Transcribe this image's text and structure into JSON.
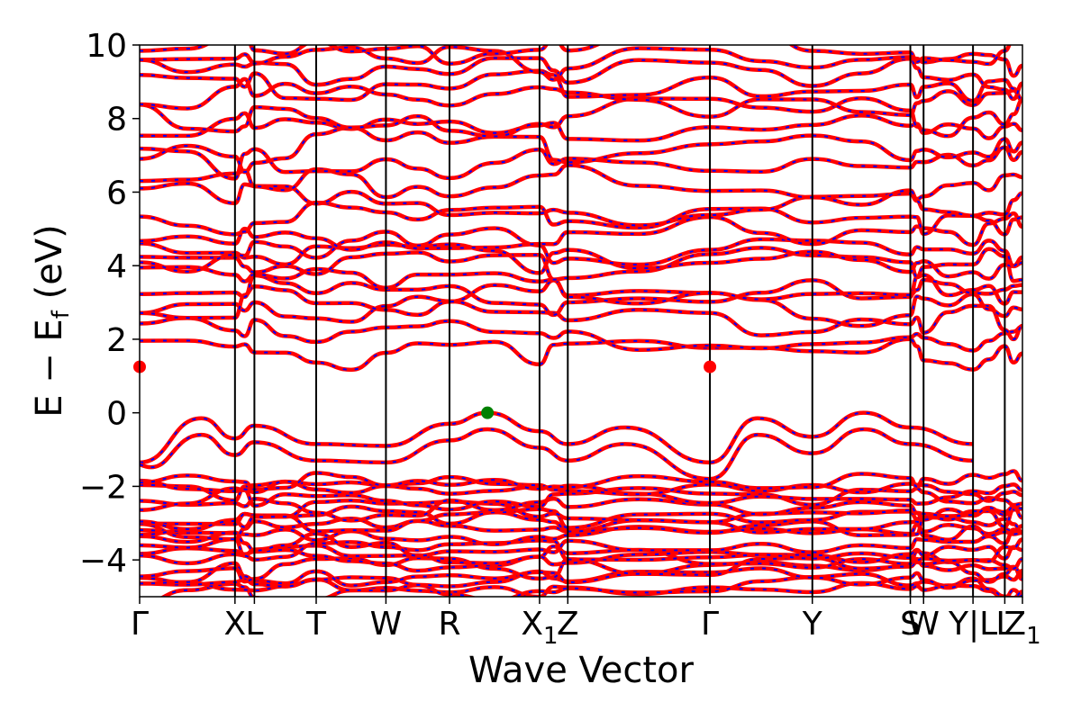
{
  "chart_data": {
    "type": "line",
    "xlabel": "Wave Vector",
    "ylabel": "E − E_f (eV)",
    "ylabel_main": "E − E",
    "ylabel_sub": "f",
    "ylabel_tail": " (eV)",
    "ylim": [
      -5,
      10
    ],
    "xlim": [
      0,
      1
    ],
    "yticks": [
      -4,
      -2,
      0,
      2,
      4,
      6,
      8,
      10
    ],
    "ytick_labels": [
      "−4",
      "−2",
      "0",
      "2",
      "4",
      "6",
      "8",
      "10"
    ],
    "kpoints": [
      {
        "x": 0.0,
        "label": "Γ"
      },
      {
        "x": 0.108,
        "label": "X"
      },
      {
        "x": 0.13,
        "label": "L"
      },
      {
        "x": 0.2,
        "label": "T"
      },
      {
        "x": 0.279,
        "label": "W"
      },
      {
        "x": 0.351,
        "label": "R"
      },
      {
        "x": 0.453,
        "label": "X",
        "subscript": "1"
      },
      {
        "x": 0.485,
        "label": "Z"
      },
      {
        "x": 0.646,
        "label": "Γ"
      },
      {
        "x": 0.762,
        "label": "Y"
      },
      {
        "x": 0.873,
        "label": "S"
      },
      {
        "x": 0.888,
        "label": "W"
      },
      {
        "x": 0.944,
        "label": "Y|L"
      },
      {
        "x": 0.98,
        "label": "L"
      },
      {
        "x": 1.0,
        "label": "Z",
        "subscript": "1"
      }
    ],
    "legend": "none",
    "grid": false,
    "series_style": {
      "line_color": "#ff0000",
      "dash_color": "#0000ff"
    },
    "bands_below": {
      "description_free": true,
      "valence_top_x": [
        0.0,
        0.07,
        0.108,
        0.13,
        0.2,
        0.279,
        0.351,
        0.394,
        0.453,
        0.485,
        0.55,
        0.646,
        0.7,
        0.762,
        0.82,
        0.873,
        0.944
      ],
      "valence_top_y": [
        -1.35,
        -0.15,
        -0.7,
        -0.35,
        -0.85,
        -0.9,
        -0.3,
        0.0,
        -0.5,
        -0.85,
        -0.4,
        -1.35,
        -0.15,
        -0.65,
        0.0,
        -0.4,
        -0.85
      ]
    },
    "markers": [
      {
        "x": 0.0,
        "y": 1.25,
        "color": "#ff0000",
        "role": "CBM"
      },
      {
        "x": 0.646,
        "y": 1.25,
        "color": "#ff0000",
        "role": "CBM"
      },
      {
        "x": 0.394,
        "y": 0.0,
        "color": "#008000",
        "role": "VBM"
      }
    ]
  }
}
